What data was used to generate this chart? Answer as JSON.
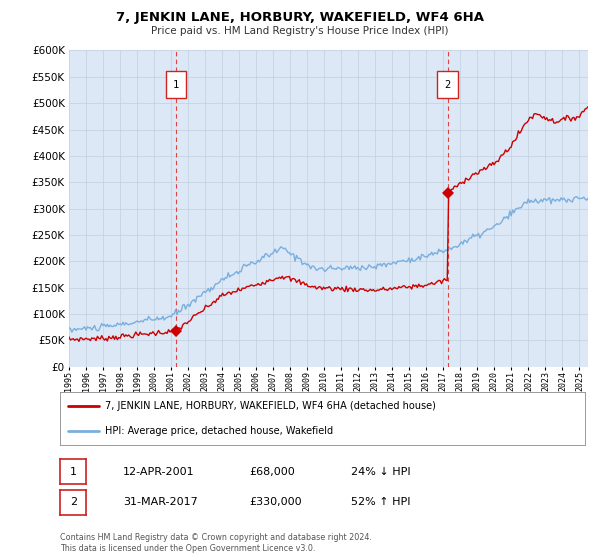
{
  "title": "7, JENKIN LANE, HORBURY, WAKEFIELD, WF4 6HA",
  "subtitle": "Price paid vs. HM Land Registry's House Price Index (HPI)",
  "ylim": [
    0,
    600000
  ],
  "yticks": [
    0,
    50000,
    100000,
    150000,
    200000,
    250000,
    300000,
    350000,
    400000,
    450000,
    500000,
    550000,
    600000
  ],
  "xlim_start": 1995.0,
  "xlim_end": 2025.5,
  "marker1_x": 2001.28,
  "marker1_y": 68000,
  "marker1_label": "1",
  "marker2_x": 2017.25,
  "marker2_y": 330000,
  "marker2_label": "2",
  "hpi_line_color": "#7aaede",
  "price_line_color": "#cc0000",
  "chart_bg_color": "#dce8f5",
  "marker_color": "#cc0000",
  "vline_color": "#dd4444",
  "annotation_box_color": "#cc2222",
  "grid_color": "#c0cfe0",
  "background_color": "#ffffff",
  "legend_line1": "7, JENKIN LANE, HORBURY, WAKEFIELD, WF4 6HA (detached house)",
  "legend_line2": "HPI: Average price, detached house, Wakefield",
  "ann1_date": "12-APR-2001",
  "ann1_price": "£68,000",
  "ann1_hpi": "24% ↓ HPI",
  "ann2_date": "31-MAR-2017",
  "ann2_price": "£330,000",
  "ann2_hpi": "52% ↑ HPI",
  "footnote1": "Contains HM Land Registry data © Crown copyright and database right 2024.",
  "footnote2": "This data is licensed under the Open Government Licence v3.0."
}
